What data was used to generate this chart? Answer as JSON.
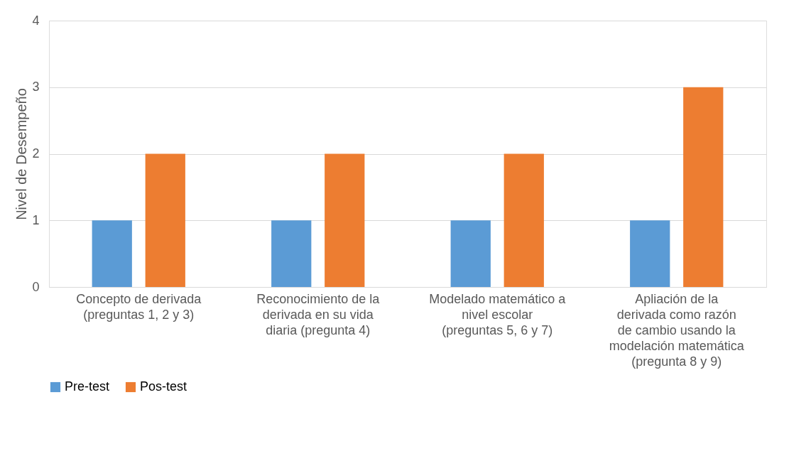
{
  "chart_data": {
    "type": "bar",
    "ylabel": "Nivel de Desempeño",
    "categories": [
      "Concepto de derivada (preguntas 1, 2 y 3)",
      "Reconocimiento de la derivada en su vida diaria (pregunta 4)",
      "Modelado matemático a nivel escolar (preguntas 5, 6 y 7)",
      "Apliación de la derivada como razón de cambio usando la modelación matemática (pregunta 8 y 9)"
    ],
    "series": [
      {
        "name": "Pre-test",
        "color": "#5b9bd5",
        "values": [
          1,
          1,
          1,
          1
        ]
      },
      {
        "name": "Pos-test",
        "color": "#ed7d31",
        "values": [
          2,
          2,
          2,
          3
        ]
      }
    ],
    "ylim": [
      0,
      4
    ],
    "yticks": [
      0,
      1,
      2,
      3,
      4
    ],
    "grid": "y",
    "legend": "bottom"
  }
}
